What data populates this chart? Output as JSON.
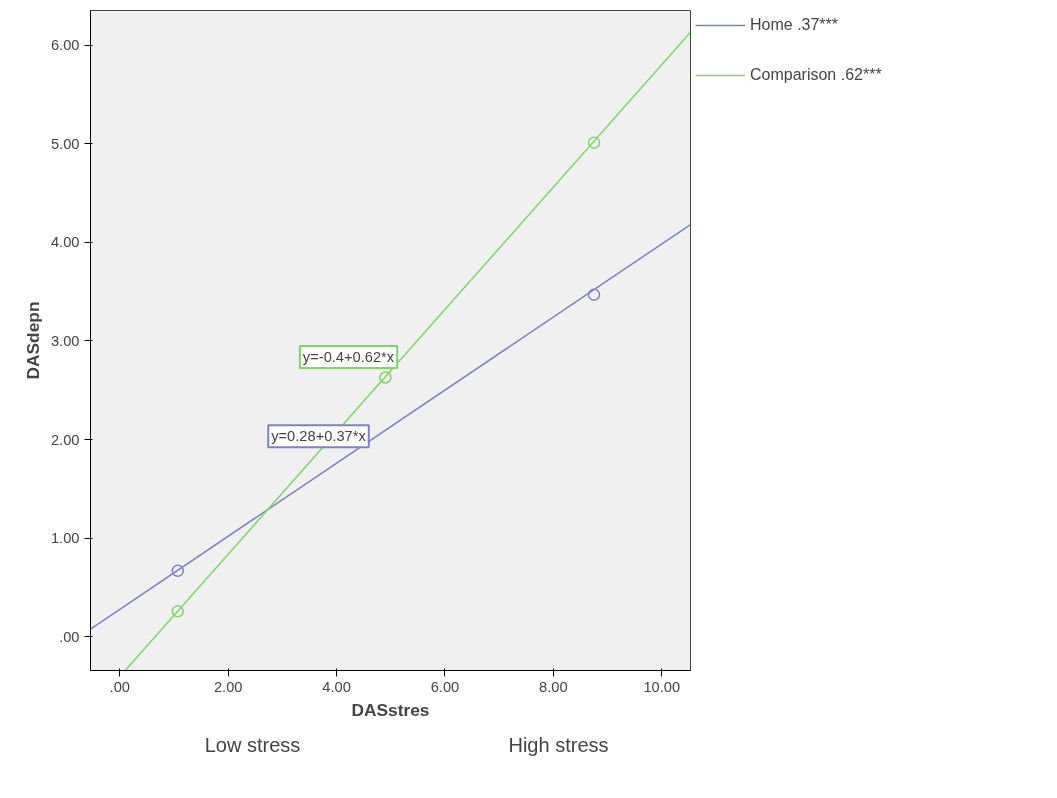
{
  "chart_data": {
    "type": "line",
    "xlabel": "DASstres",
    "ylabel": "DASdepn",
    "xlim": [
      -0.54,
      10.53
    ],
    "ylim": [
      -0.34,
      6.35
    ],
    "xticks": [
      {
        "value": 0,
        "label": ".00"
      },
      {
        "value": 2,
        "label": "2.00"
      },
      {
        "value": 4,
        "label": "4.00"
      },
      {
        "value": 6,
        "label": "6.00"
      },
      {
        "value": 8,
        "label": "8.00"
      },
      {
        "value": 10,
        "label": "10.00"
      }
    ],
    "yticks": [
      {
        "value": 0,
        "label": ".00"
      },
      {
        "value": 1,
        "label": "1.00"
      },
      {
        "value": 2,
        "label": "2.00"
      },
      {
        "value": 3,
        "label": "3.00"
      },
      {
        "value": 4,
        "label": "4.00"
      },
      {
        "value": 5,
        "label": "5.00"
      },
      {
        "value": 6,
        "label": "6.00"
      }
    ],
    "series": [
      {
        "name": "Home .37***",
        "color": "#7c82c8",
        "x": [
          -0.54,
          10.53
        ],
        "values": [
          0.08,
          4.18
        ]
      },
      {
        "name": "Comparison .62***",
        "color": "#80d46c",
        "x": [
          0.1,
          10.53
        ],
        "values": [
          -0.34,
          6.13
        ]
      },
      {
        "type": "scatter",
        "marker": "circle",
        "color": "#7c82c8",
        "x": [
          1.07,
          8.75
        ],
        "values": [
          0.67,
          3.47
        ]
      },
      {
        "type": "scatter",
        "marker": "circle",
        "color": "#80d46c",
        "x": [
          1.07,
          4.9,
          8.75
        ],
        "values": [
          0.26,
          2.63,
          5.01
        ]
      }
    ],
    "annotations": [
      "y=0.28+0.37*x",
      "y=-0.4+0.62*x",
      "Low stress",
      "High stress"
    ],
    "legend": "top right",
    "grid": false,
    "line_style": "solid"
  }
}
